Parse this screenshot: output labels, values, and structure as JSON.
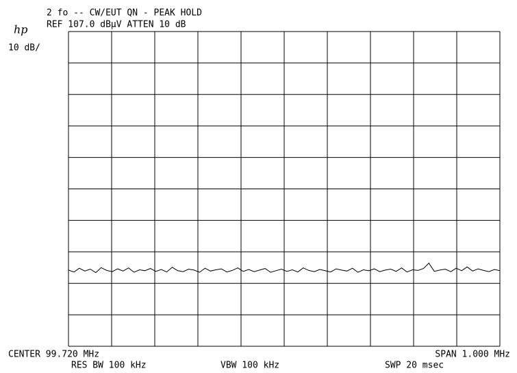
{
  "chart_data": {
    "type": "line",
    "logo": "hp",
    "title": "2 fo -- CW/EUT QN - PEAK HOLD",
    "subtitle": "REF 107.0 dBµV  ATTEN 10 dB",
    "scale_label": "10 dB/",
    "center_label": "CENTER 99.720 MHz",
    "span_label": "SPAN 1.000 MHz",
    "rbw_label": "RES BW 100 kHz",
    "vbw_label": "VBW 100 kHz",
    "sweep_label": "SWP 20 msec",
    "ylim": [
      7,
      107
    ],
    "grid": true,
    "series": [
      {
        "color": "#000000",
        "values": [
          31.2,
          30.6,
          31.8,
          30.9,
          31.5,
          30.4,
          32.0,
          31.1,
          30.7,
          31.6,
          30.9,
          31.9,
          30.5,
          31.3,
          31.0,
          31.7,
          30.8,
          31.4,
          30.6,
          32.1,
          31.0,
          30.7,
          31.5,
          31.2,
          30.5,
          31.8,
          30.9,
          31.3,
          31.6,
          30.6,
          31.1,
          31.9,
          30.8,
          31.4,
          30.7,
          31.2,
          31.7,
          30.5,
          31.0,
          31.5,
          30.8,
          31.3,
          30.6,
          31.9,
          31.1,
          30.7,
          31.4,
          31.0,
          30.6,
          31.6,
          31.2,
          30.9,
          31.8,
          30.5,
          31.3,
          31.0,
          31.6,
          30.7,
          31.2,
          31.5,
          30.8,
          31.9,
          30.6,
          31.3,
          31.1,
          31.7,
          33.4,
          30.8,
          31.2,
          31.5,
          30.7,
          31.8,
          31.0,
          32.2,
          30.9,
          31.6,
          31.1,
          30.7,
          31.4,
          31.0
        ]
      }
    ]
  }
}
